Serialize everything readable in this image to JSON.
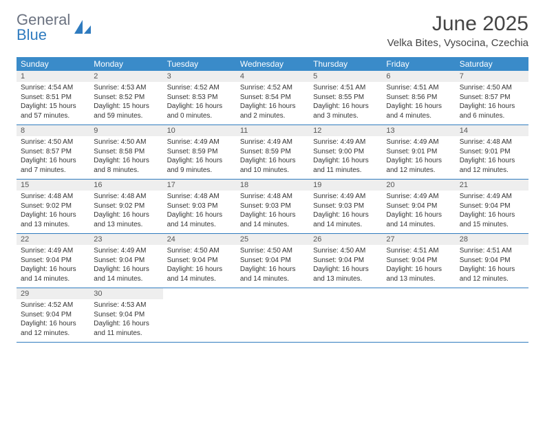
{
  "brand": {
    "word1": "General",
    "word2": "Blue"
  },
  "title": "June 2025",
  "location": "Velka Bites, Vysocina, Czechia",
  "colors": {
    "header_bg": "#3a8bc9",
    "header_text": "#ffffff",
    "daynum_bg": "#eeeeee",
    "rule": "#2f7bbf",
    "text": "#333333",
    "title_text": "#444444",
    "logo_gray": "#6b7280",
    "logo_blue": "#2f7bbf"
  },
  "weekdays": [
    "Sunday",
    "Monday",
    "Tuesday",
    "Wednesday",
    "Thursday",
    "Friday",
    "Saturday"
  ],
  "weeks": [
    [
      {
        "n": "1",
        "sunrise": "4:54 AM",
        "sunset": "8:51 PM",
        "daylight": "15 hours and 57 minutes."
      },
      {
        "n": "2",
        "sunrise": "4:53 AM",
        "sunset": "8:52 PM",
        "daylight": "15 hours and 59 minutes."
      },
      {
        "n": "3",
        "sunrise": "4:52 AM",
        "sunset": "8:53 PM",
        "daylight": "16 hours and 0 minutes."
      },
      {
        "n": "4",
        "sunrise": "4:52 AM",
        "sunset": "8:54 PM",
        "daylight": "16 hours and 2 minutes."
      },
      {
        "n": "5",
        "sunrise": "4:51 AM",
        "sunset": "8:55 PM",
        "daylight": "16 hours and 3 minutes."
      },
      {
        "n": "6",
        "sunrise": "4:51 AM",
        "sunset": "8:56 PM",
        "daylight": "16 hours and 4 minutes."
      },
      {
        "n": "7",
        "sunrise": "4:50 AM",
        "sunset": "8:57 PM",
        "daylight": "16 hours and 6 minutes."
      }
    ],
    [
      {
        "n": "8",
        "sunrise": "4:50 AM",
        "sunset": "8:57 PM",
        "daylight": "16 hours and 7 minutes."
      },
      {
        "n": "9",
        "sunrise": "4:50 AM",
        "sunset": "8:58 PM",
        "daylight": "16 hours and 8 minutes."
      },
      {
        "n": "10",
        "sunrise": "4:49 AM",
        "sunset": "8:59 PM",
        "daylight": "16 hours and 9 minutes."
      },
      {
        "n": "11",
        "sunrise": "4:49 AM",
        "sunset": "8:59 PM",
        "daylight": "16 hours and 10 minutes."
      },
      {
        "n": "12",
        "sunrise": "4:49 AM",
        "sunset": "9:00 PM",
        "daylight": "16 hours and 11 minutes."
      },
      {
        "n": "13",
        "sunrise": "4:49 AM",
        "sunset": "9:01 PM",
        "daylight": "16 hours and 12 minutes."
      },
      {
        "n": "14",
        "sunrise": "4:48 AM",
        "sunset": "9:01 PM",
        "daylight": "16 hours and 12 minutes."
      }
    ],
    [
      {
        "n": "15",
        "sunrise": "4:48 AM",
        "sunset": "9:02 PM",
        "daylight": "16 hours and 13 minutes."
      },
      {
        "n": "16",
        "sunrise": "4:48 AM",
        "sunset": "9:02 PM",
        "daylight": "16 hours and 13 minutes."
      },
      {
        "n": "17",
        "sunrise": "4:48 AM",
        "sunset": "9:03 PM",
        "daylight": "16 hours and 14 minutes."
      },
      {
        "n": "18",
        "sunrise": "4:48 AM",
        "sunset": "9:03 PM",
        "daylight": "16 hours and 14 minutes."
      },
      {
        "n": "19",
        "sunrise": "4:49 AM",
        "sunset": "9:03 PM",
        "daylight": "16 hours and 14 minutes."
      },
      {
        "n": "20",
        "sunrise": "4:49 AM",
        "sunset": "9:04 PM",
        "daylight": "16 hours and 14 minutes."
      },
      {
        "n": "21",
        "sunrise": "4:49 AM",
        "sunset": "9:04 PM",
        "daylight": "16 hours and 15 minutes."
      }
    ],
    [
      {
        "n": "22",
        "sunrise": "4:49 AM",
        "sunset": "9:04 PM",
        "daylight": "16 hours and 14 minutes."
      },
      {
        "n": "23",
        "sunrise": "4:49 AM",
        "sunset": "9:04 PM",
        "daylight": "16 hours and 14 minutes."
      },
      {
        "n": "24",
        "sunrise": "4:50 AM",
        "sunset": "9:04 PM",
        "daylight": "16 hours and 14 minutes."
      },
      {
        "n": "25",
        "sunrise": "4:50 AM",
        "sunset": "9:04 PM",
        "daylight": "16 hours and 14 minutes."
      },
      {
        "n": "26",
        "sunrise": "4:50 AM",
        "sunset": "9:04 PM",
        "daylight": "16 hours and 13 minutes."
      },
      {
        "n": "27",
        "sunrise": "4:51 AM",
        "sunset": "9:04 PM",
        "daylight": "16 hours and 13 minutes."
      },
      {
        "n": "28",
        "sunrise": "4:51 AM",
        "sunset": "9:04 PM",
        "daylight": "16 hours and 12 minutes."
      }
    ],
    [
      {
        "n": "29",
        "sunrise": "4:52 AM",
        "sunset": "9:04 PM",
        "daylight": "16 hours and 12 minutes."
      },
      {
        "n": "30",
        "sunrise": "4:53 AM",
        "sunset": "9:04 PM",
        "daylight": "16 hours and 11 minutes."
      },
      null,
      null,
      null,
      null,
      null
    ]
  ],
  "labels": {
    "sunrise": "Sunrise: ",
    "sunset": "Sunset: ",
    "daylight": "Daylight: "
  }
}
